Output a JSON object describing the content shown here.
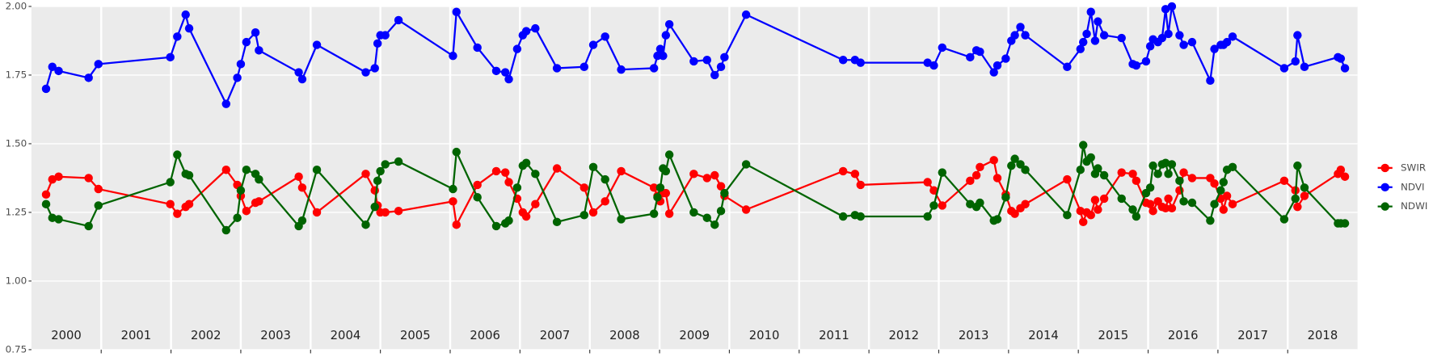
{
  "chart_data": {
    "type": "line",
    "x": [
      2000.21,
      2000.3,
      2000.39,
      2000.82,
      2000.96,
      2001.99,
      2002.09,
      2002.21,
      2002.26,
      2002.79,
      2002.95,
      2003.0,
      2003.08,
      2003.21,
      2003.26,
      2003.83,
      2003.88,
      2004.09,
      2004.79,
      2004.92,
      2004.96,
      2005.0,
      2005.07,
      2005.26,
      2006.04,
      2006.09,
      2006.39,
      2006.66,
      2006.79,
      2006.84,
      2006.96,
      2007.04,
      2007.09,
      2007.22,
      2007.53,
      2007.92,
      2008.05,
      2008.22,
      2008.45,
      2008.92,
      2008.97,
      2009.01,
      2009.05,
      2009.09,
      2009.14,
      2009.49,
      2009.68,
      2009.79,
      2009.88,
      2009.93,
      2010.24,
      2011.63,
      2011.8,
      2011.88,
      2012.84,
      2012.93,
      2013.05,
      2013.45,
      2013.54,
      2013.59,
      2013.79,
      2013.84,
      2013.96,
      2014.04,
      2014.09,
      2014.17,
      2014.24,
      2014.84,
      2015.03,
      2015.07,
      2015.12,
      2015.18,
      2015.24,
      2015.28,
      2015.37,
      2015.62,
      2015.78,
      2015.83,
      2015.97,
      2016.03,
      2016.07,
      2016.14,
      2016.2,
      2016.25,
      2016.29,
      2016.34,
      2016.45,
      2016.51,
      2016.63,
      2016.89,
      2016.95,
      2017.04,
      2017.08,
      2017.13,
      2017.21,
      2017.95,
      2018.11,
      2018.14,
      2018.24,
      2018.72,
      2018.76,
      2018.82
    ],
    "series": [
      {
        "name": "SWIR",
        "color": "#ff0000",
        "values": [
          1.315,
          1.37,
          1.38,
          1.375,
          1.335,
          1.28,
          1.245,
          1.27,
          1.28,
          1.405,
          1.35,
          1.31,
          1.255,
          1.285,
          1.29,
          1.38,
          1.34,
          1.25,
          1.39,
          1.33,
          1.275,
          1.25,
          1.25,
          1.255,
          1.29,
          1.205,
          1.35,
          1.4,
          1.395,
          1.36,
          1.3,
          1.25,
          1.235,
          1.28,
          1.41,
          1.34,
          1.25,
          1.29,
          1.4,
          1.34,
          1.31,
          1.29,
          1.32,
          1.32,
          1.245,
          1.39,
          1.375,
          1.385,
          1.345,
          1.31,
          1.26,
          1.4,
          1.39,
          1.35,
          1.36,
          1.33,
          1.275,
          1.365,
          1.385,
          1.415,
          1.44,
          1.375,
          1.315,
          1.255,
          1.245,
          1.265,
          1.28,
          1.37,
          1.255,
          1.215,
          1.25,
          1.24,
          1.295,
          1.26,
          1.3,
          1.395,
          1.39,
          1.365,
          1.285,
          1.28,
          1.255,
          1.29,
          1.27,
          1.265,
          1.3,
          1.265,
          1.33,
          1.395,
          1.375,
          1.375,
          1.355,
          1.3,
          1.26,
          1.31,
          1.28,
          1.365,
          1.33,
          1.27,
          1.31,
          1.39,
          1.405,
          1.38
        ]
      },
      {
        "name": "NDVI",
        "color": "#0000ff",
        "values": [
          1.7,
          1.78,
          1.765,
          1.74,
          1.79,
          1.815,
          1.89,
          1.97,
          1.92,
          1.645,
          1.74,
          1.79,
          1.87,
          1.905,
          1.84,
          1.76,
          1.735,
          1.86,
          1.76,
          1.775,
          1.865,
          1.895,
          1.895,
          1.95,
          1.82,
          1.98,
          1.85,
          1.765,
          1.76,
          1.735,
          1.845,
          1.895,
          1.91,
          1.92,
          1.775,
          1.78,
          1.86,
          1.89,
          1.77,
          1.775,
          1.82,
          1.845,
          1.82,
          1.895,
          1.935,
          1.8,
          1.805,
          1.75,
          1.78,
          1.815,
          1.97,
          1.805,
          1.805,
          1.795,
          1.795,
          1.785,
          1.85,
          1.815,
          1.84,
          1.835,
          1.76,
          1.785,
          1.81,
          1.875,
          1.895,
          1.925,
          1.895,
          1.78,
          1.845,
          1.87,
          1.9,
          1.98,
          1.875,
          1.945,
          1.895,
          1.885,
          1.79,
          1.785,
          1.8,
          1.855,
          1.88,
          1.87,
          1.885,
          1.99,
          1.9,
          2.0,
          1.895,
          1.86,
          1.87,
          1.73,
          1.845,
          1.86,
          1.86,
          1.87,
          1.89,
          1.775,
          1.8,
          1.895,
          1.78,
          1.815,
          1.81,
          1.775
        ]
      },
      {
        "name": "NDWI",
        "color": "#006400",
        "values": [
          1.28,
          1.23,
          1.225,
          1.2,
          1.275,
          1.36,
          1.46,
          1.39,
          1.385,
          1.185,
          1.23,
          1.33,
          1.405,
          1.39,
          1.37,
          1.2,
          1.22,
          1.405,
          1.205,
          1.27,
          1.365,
          1.4,
          1.425,
          1.435,
          1.335,
          1.47,
          1.305,
          1.2,
          1.21,
          1.22,
          1.34,
          1.42,
          1.43,
          1.39,
          1.215,
          1.24,
          1.415,
          1.37,
          1.225,
          1.245,
          1.305,
          1.34,
          1.41,
          1.4,
          1.46,
          1.25,
          1.23,
          1.205,
          1.255,
          1.32,
          1.425,
          1.235,
          1.24,
          1.235,
          1.235,
          1.275,
          1.395,
          1.28,
          1.27,
          1.285,
          1.22,
          1.225,
          1.305,
          1.42,
          1.445,
          1.425,
          1.405,
          1.24,
          1.405,
          1.495,
          1.435,
          1.45,
          1.39,
          1.41,
          1.385,
          1.3,
          1.26,
          1.235,
          1.32,
          1.34,
          1.42,
          1.39,
          1.425,
          1.43,
          1.39,
          1.425,
          1.365,
          1.29,
          1.285,
          1.22,
          1.28,
          1.33,
          1.36,
          1.405,
          1.415,
          1.225,
          1.3,
          1.42,
          1.34,
          1.21,
          1.21,
          1.21
        ]
      }
    ],
    "xlim": [
      2000,
      2019
    ],
    "xticks": [
      2001,
      2002,
      2003,
      2004,
      2005,
      2006,
      2007,
      2008,
      2009,
      2010,
      2011,
      2012,
      2013,
      2014,
      2015,
      2016,
      2017,
      2018
    ],
    "year_labels": [
      "2000",
      "2001",
      "2002",
      "2003",
      "2004",
      "2005",
      "2006",
      "2007",
      "2008",
      "2009",
      "2010",
      "2011",
      "2012",
      "2013",
      "2014",
      "2015",
      "2016",
      "2017",
      "2018"
    ],
    "ylim": [
      0.75,
      2.0
    ],
    "yticks": [
      {
        "value": 0.75,
        "label": "0.75"
      },
      {
        "value": 1.0,
        "label": "1.00"
      },
      {
        "value": 1.25,
        "label": "1.25"
      },
      {
        "value": 1.5,
        "label": "1.50"
      },
      {
        "value": 1.75,
        "label": "1.75"
      },
      {
        "value": 2.0,
        "label": "2.00"
      }
    ],
    "grid": true,
    "legend": "right"
  }
}
